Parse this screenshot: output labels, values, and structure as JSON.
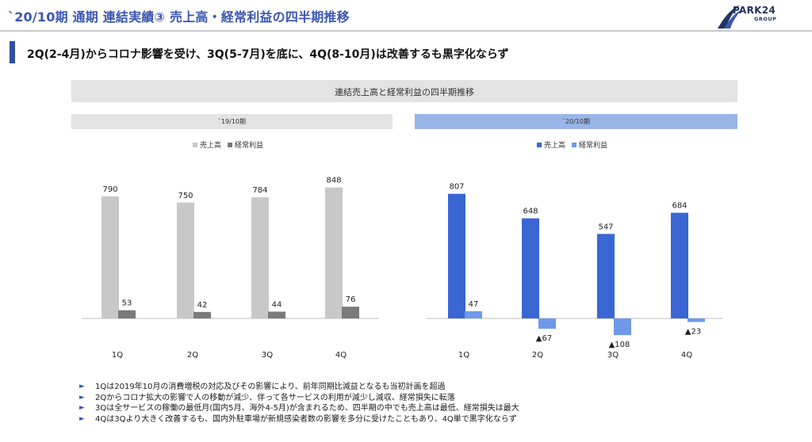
{
  "header": {
    "title": "`20/10期 通期 連結実績③ 売上高・経常利益の四半期推移",
    "logo_text": "PARK24",
    "logo_sub": "GROUP"
  },
  "headline": "2Q(2-4月)からコロナ影響を受け、3Q(5-7月)を底に、4Q(8-10月)は改善するも黒字化ならず",
  "chart_data": {
    "type": "bar",
    "title": "連結売上高と経常利益の四半期推移",
    "categories": [
      "1Q",
      "2Q",
      "3Q",
      "4Q"
    ],
    "panels": [
      {
        "label": "`19/10期",
        "series": [
          {
            "name": "売上高",
            "values": [
              790,
              750,
              784,
              848
            ],
            "labels": [
              "790",
              "750",
              "784",
              "848"
            ],
            "color": "#c8c8c8"
          },
          {
            "name": "経常利益",
            "values": [
              53,
              42,
              44,
              76
            ],
            "labels": [
              "53",
              "42",
              "44",
              "76"
            ],
            "color": "#7a7a7a"
          }
        ]
      },
      {
        "label": "`20/10期",
        "series": [
          {
            "name": "売上高",
            "values": [
              807,
              648,
              547,
              684
            ],
            "labels": [
              "807",
              "648",
              "547",
              "684"
            ],
            "color": "#3a66d4"
          },
          {
            "name": "経常利益",
            "values": [
              47,
              -67,
              -108,
              -23
            ],
            "labels": [
              "47",
              "▲67",
              "▲108",
              "▲23"
            ],
            "color": "#6f99e8"
          }
        ]
      }
    ]
  },
  "notes": [
    "1Qは2019年10月の消費増税の対応及びその影響により、前年同期比減益となるも当初計画を超過",
    "2Qからコロナ拡大の影響で人の移動が減少、伴って各サービスの利用が減少し減収、経常損失に転落",
    "3Qは全サービスの稼働の最低月(国内5月、海外4-5月)が含まれるため、四半期の中でも売上高は最低、経常損失は最大",
    "4Qは3Qより大きく改善するも、国内外駐車場が新規感染者数の影響を多分に受けたこともあり、4Q単で黒字化ならず"
  ],
  "note_marker": "►"
}
